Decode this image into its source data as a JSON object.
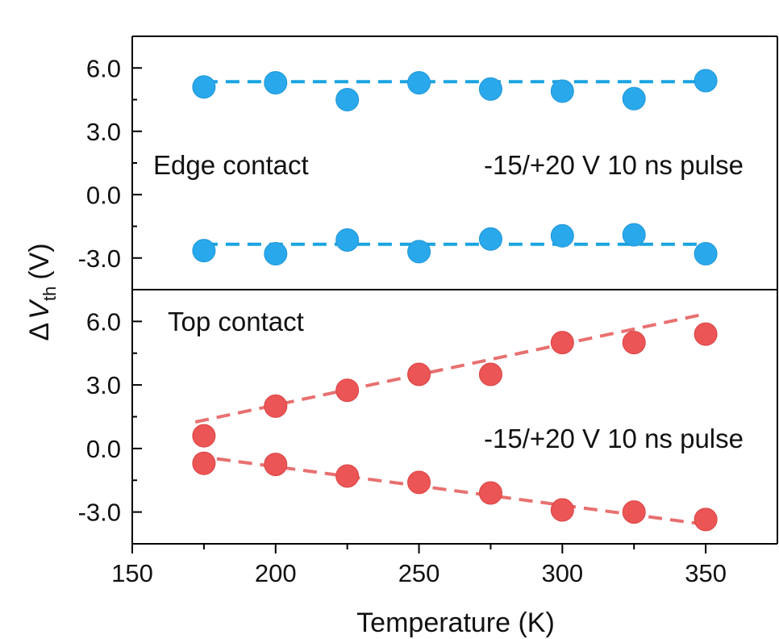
{
  "chart_data": {
    "type": "scatter",
    "xlabel": "Temperature (K)",
    "ylabel": {
      "prefix": "Δ",
      "var": "V",
      "sub": "th",
      "unit": "(V)"
    },
    "xlim": [
      150,
      375
    ],
    "xticks": [
      "150",
      "200",
      "250",
      "300",
      "350"
    ],
    "x_tick_values": [
      150,
      200,
      250,
      300,
      350
    ],
    "grid": false,
    "panels": [
      {
        "name": "edge",
        "ylim": [
          -4.5,
          7.5
        ],
        "yticks": [
          "-3.0",
          "0.0",
          "3.0",
          "6.0"
        ],
        "y_tick_values": [
          -3,
          0,
          3,
          6
        ],
        "color": "#29a9eb",
        "line_color": "#1aa3e0",
        "annotations": {
          "left": "Edge contact",
          "right": "-15/+20 V 10 ns pulse"
        },
        "series": [
          {
            "x": [
              175,
              200,
              225,
              250,
              275,
              300,
              325,
              350
            ],
            "y": [
              5.1,
              5.3,
              4.5,
              5.3,
              5.0,
              4.9,
              4.55,
              5.4
            ]
          },
          {
            "x": [
              175,
              200,
              225,
              250,
              275,
              300,
              325,
              350
            ],
            "y": [
              -2.65,
              -2.8,
              -2.15,
              -2.7,
              -2.1,
              -1.95,
              -1.9,
              -2.8
            ]
          }
        ],
        "fits": [
          {
            "x": [
              175,
              350
            ],
            "y": [
              5.35,
              5.35
            ]
          },
          {
            "x": [
              175,
              350
            ],
            "y": [
              -2.35,
              -2.35
            ]
          }
        ]
      },
      {
        "name": "top",
        "ylim": [
          -4.5,
          7.5
        ],
        "yticks": [
          "-3.0",
          "0.0",
          "3.0",
          "6.0"
        ],
        "y_tick_values": [
          -3,
          0,
          3,
          6
        ],
        "color": "#ec5555",
        "line_color": "#e87070",
        "annotations": {
          "left": "Top contact",
          "right": "-15/+20 V 10 ns pulse"
        },
        "series": [
          {
            "x": [
              175,
              200,
              225,
              250,
              275,
              300,
              325,
              350
            ],
            "y": [
              0.6,
              2.0,
              2.75,
              3.5,
              3.5,
              5.0,
              5.0,
              5.4
            ]
          },
          {
            "x": [
              175,
              200,
              225,
              250,
              275,
              300,
              325,
              350
            ],
            "y": [
              -0.7,
              -0.75,
              -1.3,
              -1.6,
              -2.1,
              -2.9,
              -3.0,
              -3.35
            ]
          }
        ],
        "fits": [
          {
            "x": [
              172,
              348
            ],
            "y": [
              1.25,
              6.3
            ]
          },
          {
            "x": [
              172,
              348
            ],
            "y": [
              -0.35,
              -3.55
            ]
          }
        ]
      }
    ]
  }
}
